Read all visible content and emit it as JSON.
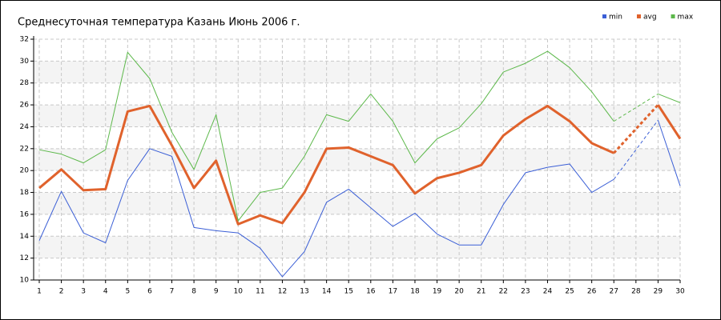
{
  "chart_data": {
    "type": "line",
    "title": "Среднесуточная температура Казань  Июнь 2006 г.",
    "x": [
      1,
      2,
      3,
      4,
      5,
      6,
      7,
      8,
      9,
      10,
      11,
      12,
      13,
      14,
      15,
      16,
      17,
      18,
      19,
      20,
      21,
      22,
      23,
      24,
      25,
      26,
      27,
      28,
      29,
      30
    ],
    "xlim": [
      1,
      30
    ],
    "xticks": [
      1,
      2,
      3,
      4,
      5,
      6,
      7,
      8,
      9,
      10,
      11,
      12,
      13,
      14,
      15,
      16,
      17,
      18,
      19,
      20,
      21,
      22,
      23,
      24,
      25,
      26,
      27,
      28,
      29,
      30
    ],
    "ylim": [
      10,
      32
    ],
    "yticks": [
      10,
      12,
      14,
      16,
      18,
      20,
      22,
      24,
      26,
      28,
      30,
      32
    ],
    "grid": true,
    "legend": "top-right",
    "series": [
      {
        "name": "min",
        "color": "#3b5fd6",
        "width": 1,
        "values": [
          13.6,
          18.1,
          14.3,
          13.4,
          19.1,
          22.0,
          21.3,
          14.8,
          14.5,
          14.3,
          12.9,
          10.3,
          12.6,
          17.1,
          18.3,
          16.6,
          14.9,
          16.1,
          14.2,
          13.2,
          13.2,
          16.9,
          19.8,
          20.3,
          20.6,
          18.0,
          19.2,
          null,
          24.6,
          18.6
        ]
      },
      {
        "name": "avg",
        "color": "#e0622c",
        "width": 3,
        "values": [
          18.4,
          20.1,
          18.2,
          18.3,
          25.4,
          25.9,
          22.3,
          18.4,
          20.9,
          15.1,
          15.9,
          15.2,
          18.0,
          22.0,
          22.1,
          21.3,
          20.5,
          17.9,
          19.3,
          19.8,
          20.5,
          23.2,
          24.7,
          25.9,
          24.5,
          22.5,
          21.6,
          null,
          26.0,
          22.9
        ]
      },
      {
        "name": "max",
        "color": "#5cb84a",
        "width": 1,
        "values": [
          21.9,
          21.5,
          20.7,
          21.9,
          30.8,
          28.4,
          23.5,
          20.1,
          25.1,
          15.4,
          18.0,
          18.4,
          21.3,
          25.1,
          24.5,
          27.0,
          24.5,
          20.7,
          22.9,
          23.9,
          26.1,
          29.0,
          29.8,
          30.9,
          29.4,
          27.2,
          24.5,
          null,
          27.0,
          26.2
        ]
      }
    ]
  }
}
